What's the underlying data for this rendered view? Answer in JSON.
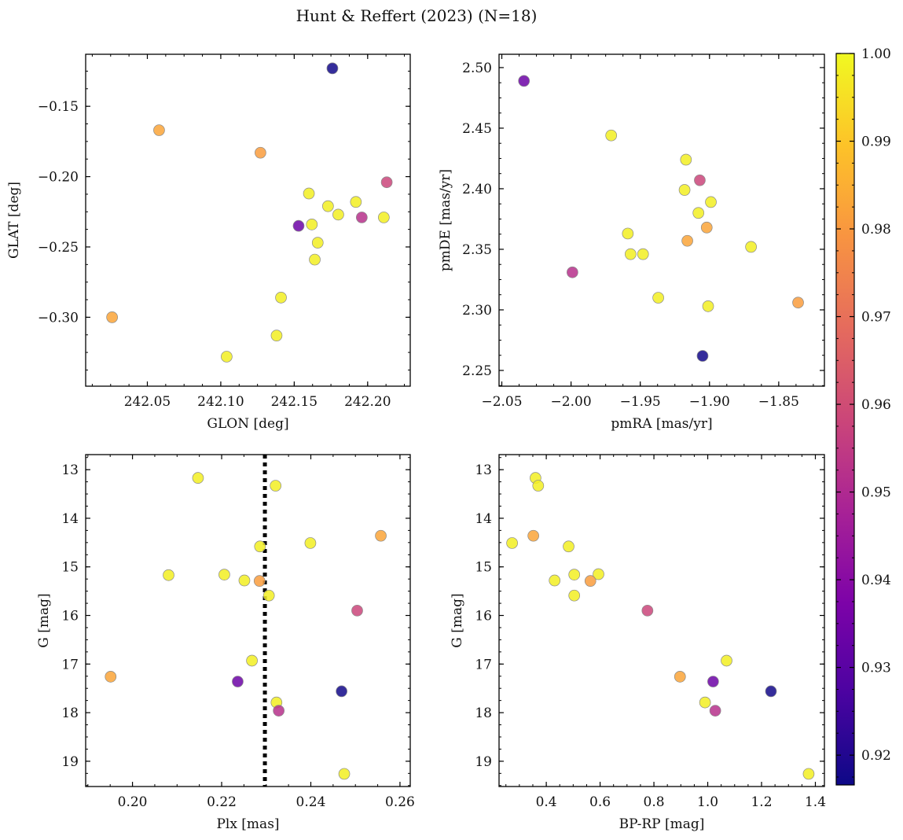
{
  "figure": {
    "title": "Hunt & Reffert (2023) (N=18)"
  },
  "colorbar": {
    "cmap": "plasma",
    "range": [
      0.9166,
      1.0
    ],
    "ticks": [
      0.92,
      0.93,
      0.94,
      0.95,
      0.96,
      0.97,
      0.98,
      0.99,
      1.0
    ],
    "tick_labels": [
      "0.92",
      "0.93",
      "0.94",
      "0.95",
      "0.96",
      "0.97",
      "0.98",
      "0.99",
      "1.00"
    ]
  },
  "chart_data": [
    {
      "type": "scatter",
      "name": "GLON vs GLAT",
      "xlabel": "GLON [deg]",
      "ylabel": "GLAT [deg]",
      "xlim": [
        242.008,
        242.229
      ],
      "ylim": [
        -0.349,
        -0.113
      ],
      "xticks": [
        242.05,
        242.1,
        242.15,
        242.2
      ],
      "xtick_labels": [
        "242.05",
        "242.10",
        "242.15",
        "242.20"
      ],
      "yticks": [
        -0.15,
        -0.2,
        -0.25,
        -0.3
      ],
      "ytick_labels": [
        "−0.15",
        "−0.20",
        "−0.25",
        "−0.30"
      ],
      "points": [
        {
          "x": 242.176,
          "y": -0.123,
          "c": 0.9175
        },
        {
          "x": 242.058,
          "y": -0.167,
          "c": 0.983
        },
        {
          "x": 242.127,
          "y": -0.183,
          "c": 0.981
        },
        {
          "x": 242.213,
          "y": -0.204,
          "c": 0.958
        },
        {
          "x": 242.16,
          "y": -0.212,
          "c": 0.998
        },
        {
          "x": 242.192,
          "y": -0.218,
          "c": 0.998
        },
        {
          "x": 242.173,
          "y": -0.221,
          "c": 0.998
        },
        {
          "x": 242.18,
          "y": -0.227,
          "c": 0.998
        },
        {
          "x": 242.196,
          "y": -0.229,
          "c": 0.952
        },
        {
          "x": 242.211,
          "y": -0.229,
          "c": 0.998
        },
        {
          "x": 242.162,
          "y": -0.234,
          "c": 0.998
        },
        {
          "x": 242.153,
          "y": -0.235,
          "c": 0.934
        },
        {
          "x": 242.166,
          "y": -0.247,
          "c": 0.998
        },
        {
          "x": 242.164,
          "y": -0.259,
          "c": 0.998
        },
        {
          "x": 242.141,
          "y": -0.286,
          "c": 0.998
        },
        {
          "x": 242.026,
          "y": -0.3,
          "c": 0.983
        },
        {
          "x": 242.138,
          "y": -0.313,
          "c": 0.998
        },
        {
          "x": 242.104,
          "y": -0.328,
          "c": 0.998
        }
      ]
    },
    {
      "type": "scatter",
      "name": "pmRA vs pmDE",
      "xlabel": "pmRA [mas/yr]",
      "ylabel": "pmDE [mas/yr]",
      "xlim": [
        -2.052,
        -1.817
      ],
      "ylim": [
        2.237,
        2.511
      ],
      "xticks": [
        -2.05,
        -2.0,
        -1.95,
        -1.9,
        -1.85
      ],
      "xtick_labels": [
        "−2.05",
        "−2.00",
        "−1.95",
        "−1.90",
        "−1.85"
      ],
      "yticks": [
        2.25,
        2.3,
        2.35,
        2.4,
        2.45,
        2.5
      ],
      "ytick_labels": [
        "2.25",
        "2.30",
        "2.35",
        "2.40",
        "2.45",
        "2.50"
      ],
      "points": [
        {
          "x": -2.034,
          "y": 2.489,
          "c": 0.934
        },
        {
          "x": -1.971,
          "y": 2.444,
          "c": 0.998
        },
        {
          "x": -1.917,
          "y": 2.424,
          "c": 0.998
        },
        {
          "x": -1.907,
          "y": 2.407,
          "c": 0.958
        },
        {
          "x": -1.918,
          "y": 2.399,
          "c": 0.998
        },
        {
          "x": -1.899,
          "y": 2.389,
          "c": 0.998
        },
        {
          "x": -1.908,
          "y": 2.38,
          "c": 0.998
        },
        {
          "x": -1.902,
          "y": 2.368,
          "c": 0.983
        },
        {
          "x": -1.959,
          "y": 2.363,
          "c": 0.998
        },
        {
          "x": -1.916,
          "y": 2.357,
          "c": 0.983
        },
        {
          "x": -1.87,
          "y": 2.352,
          "c": 0.998
        },
        {
          "x": -1.957,
          "y": 2.346,
          "c": 0.998
        },
        {
          "x": -1.948,
          "y": 2.346,
          "c": 0.998
        },
        {
          "x": -1.999,
          "y": 2.331,
          "c": 0.952
        },
        {
          "x": -1.937,
          "y": 2.31,
          "c": 0.998
        },
        {
          "x": -1.836,
          "y": 2.306,
          "c": 0.981
        },
        {
          "x": -1.901,
          "y": 2.303,
          "c": 0.998
        },
        {
          "x": -1.905,
          "y": 2.262,
          "c": 0.9175
        }
      ]
    },
    {
      "type": "scatter",
      "name": "Plx vs G",
      "xlabel": "Plx [mas]",
      "ylabel": "G [mag]",
      "xlim": [
        0.1895,
        0.2623
      ],
      "ylim": [
        19.52,
        12.69
      ],
      "y_inverted": true,
      "xticks": [
        0.2,
        0.22,
        0.24,
        0.26
      ],
      "xtick_labels": [
        "0.20",
        "0.22",
        "0.24",
        "0.26"
      ],
      "yticks": [
        13,
        14,
        15,
        16,
        17,
        18,
        19
      ],
      "ytick_labels": [
        "13",
        "14",
        "15",
        "16",
        "17",
        "18",
        "19"
      ],
      "vline": 0.2297,
      "points": [
        {
          "x": 0.2147,
          "y": 13.17,
          "c": 0.998
        },
        {
          "x": 0.2321,
          "y": 13.33,
          "c": 0.998
        },
        {
          "x": 0.2557,
          "y": 14.36,
          "c": 0.983
        },
        {
          "x": 0.2399,
          "y": 14.51,
          "c": 0.998
        },
        {
          "x": 0.2286,
          "y": 14.58,
          "c": 0.998
        },
        {
          "x": 0.2081,
          "y": 15.17,
          "c": 0.998
        },
        {
          "x": 0.2206,
          "y": 15.16,
          "c": 0.998
        },
        {
          "x": 0.2251,
          "y": 15.28,
          "c": 0.998
        },
        {
          "x": 0.2285,
          "y": 15.29,
          "c": 0.981
        },
        {
          "x": 0.2306,
          "y": 15.59,
          "c": 0.998
        },
        {
          "x": 0.2504,
          "y": 15.9,
          "c": 0.958
        },
        {
          "x": 0.2268,
          "y": 16.93,
          "c": 0.998
        },
        {
          "x": 0.1951,
          "y": 17.26,
          "c": 0.983
        },
        {
          "x": 0.2236,
          "y": 17.36,
          "c": 0.934
        },
        {
          "x": 0.2469,
          "y": 17.56,
          "c": 0.9175
        },
        {
          "x": 0.2323,
          "y": 17.79,
          "c": 0.998
        },
        {
          "x": 0.2328,
          "y": 17.96,
          "c": 0.952
        },
        {
          "x": 0.2475,
          "y": 19.26,
          "c": 0.998
        }
      ]
    },
    {
      "type": "scatter",
      "name": "BP-RP vs G",
      "xlabel": "BP-RP [mag]",
      "ylabel": "G [mag]",
      "xlim": [
        0.2245,
        1.4336
      ],
      "ylim": [
        19.52,
        12.69
      ],
      "y_inverted": true,
      "xticks": [
        0.4,
        0.6,
        0.8,
        1.0,
        1.2,
        1.4
      ],
      "xtick_labels": [
        "0.4",
        "0.6",
        "0.8",
        "1.0",
        "1.2",
        "1.4"
      ],
      "yticks": [
        13,
        14,
        15,
        16,
        17,
        18,
        19
      ],
      "ytick_labels": [
        "13",
        "14",
        "15",
        "16",
        "17",
        "18",
        "19"
      ],
      "points": [
        {
          "x": 0.36,
          "y": 13.17,
          "c": 0.998
        },
        {
          "x": 0.37,
          "y": 13.33,
          "c": 0.998
        },
        {
          "x": 0.352,
          "y": 14.36,
          "c": 0.983
        },
        {
          "x": 0.273,
          "y": 14.51,
          "c": 0.998
        },
        {
          "x": 0.483,
          "y": 14.58,
          "c": 0.998
        },
        {
          "x": 0.504,
          "y": 15.16,
          "c": 0.998
        },
        {
          "x": 0.594,
          "y": 15.15,
          "c": 0.998
        },
        {
          "x": 0.431,
          "y": 15.28,
          "c": 0.998
        },
        {
          "x": 0.564,
          "y": 15.29,
          "c": 0.981
        },
        {
          "x": 0.504,
          "y": 15.59,
          "c": 0.998
        },
        {
          "x": 0.776,
          "y": 15.9,
          "c": 0.958
        },
        {
          "x": 1.07,
          "y": 16.93,
          "c": 0.998
        },
        {
          "x": 0.897,
          "y": 17.26,
          "c": 0.983
        },
        {
          "x": 1.02,
          "y": 17.36,
          "c": 0.934
        },
        {
          "x": 1.235,
          "y": 17.56,
          "c": 0.9175
        },
        {
          "x": 0.99,
          "y": 17.79,
          "c": 0.998
        },
        {
          "x": 1.028,
          "y": 17.96,
          "c": 0.952
        },
        {
          "x": 1.375,
          "y": 19.26,
          "c": 0.998
        }
      ]
    }
  ]
}
